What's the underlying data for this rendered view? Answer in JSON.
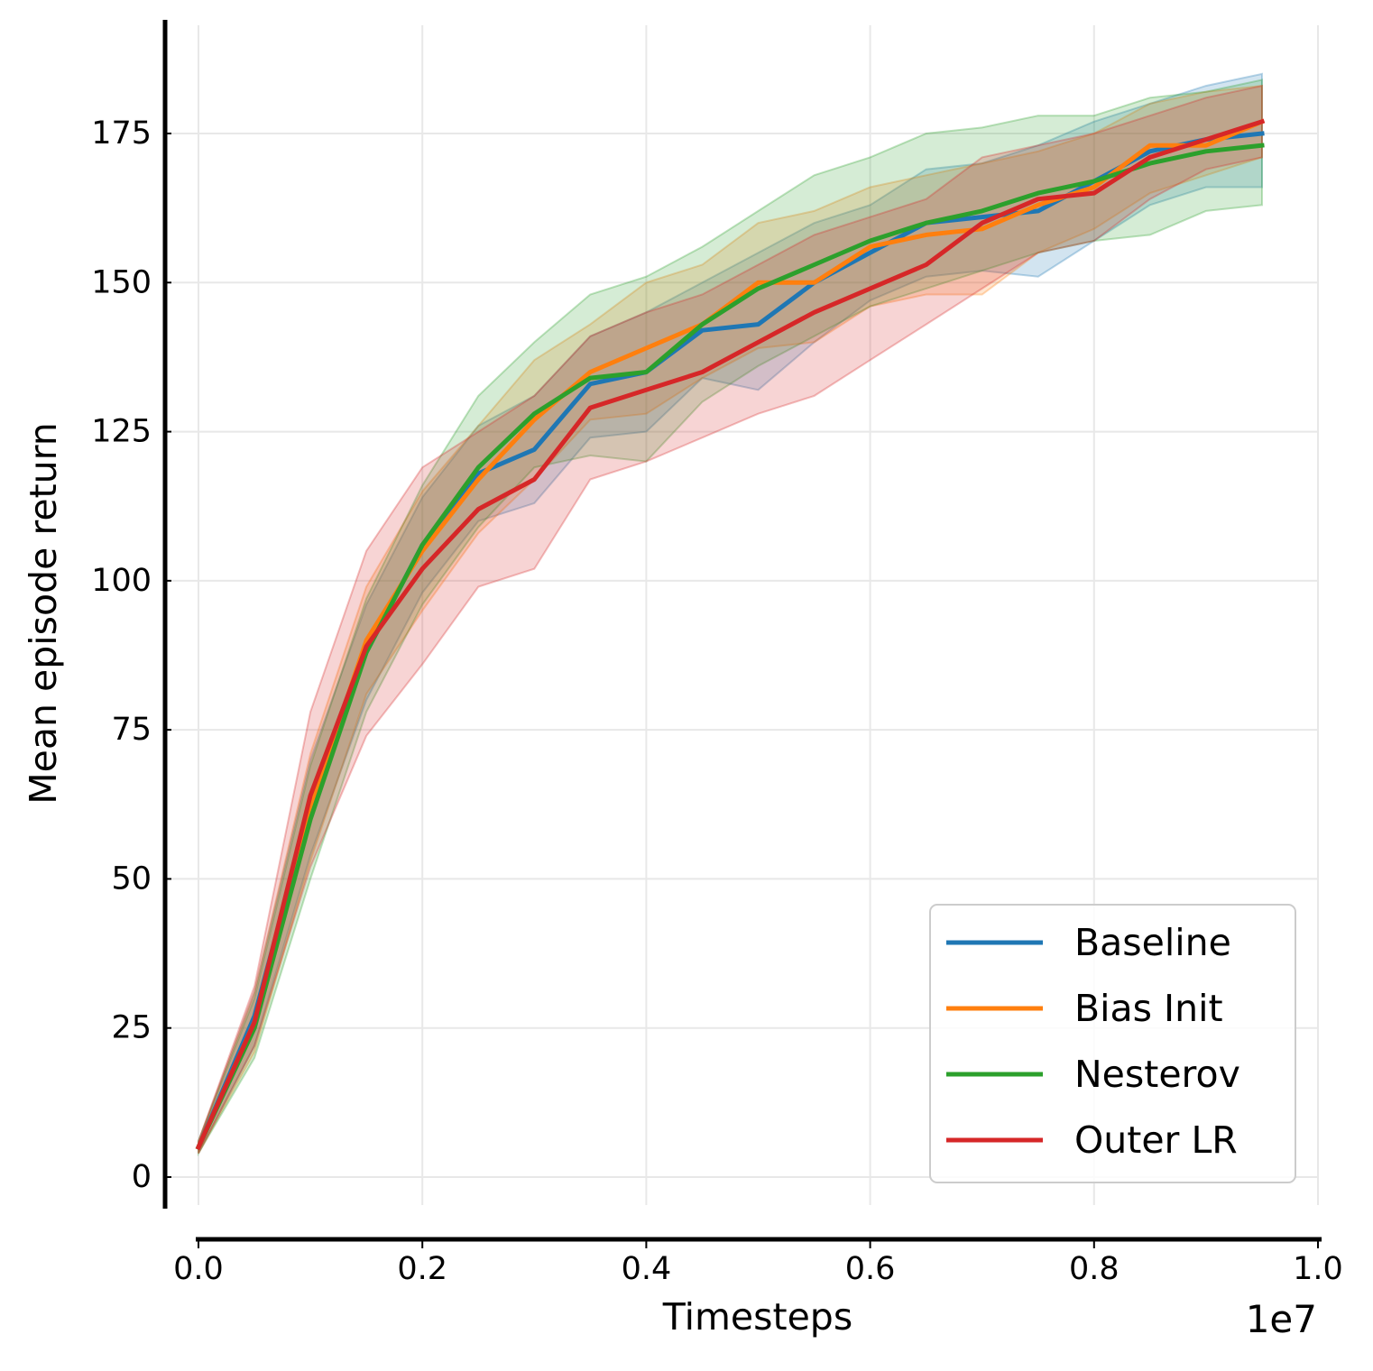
{
  "chart_data": {
    "type": "line",
    "title": "",
    "xlabel": "Timesteps",
    "ylabel": "Mean episode return",
    "x_offset_label": "1e7",
    "xlim": [
      0.0,
      1.0
    ],
    "ylim": [
      -5,
      195
    ],
    "grid": true,
    "legend_position": "lower-right",
    "x_ticks": [
      0.0,
      0.2,
      0.4,
      0.6,
      0.8,
      1.0
    ],
    "x_tick_labels": [
      "0.0",
      "0.2",
      "0.4",
      "0.6",
      "0.8",
      "1.0"
    ],
    "y_ticks": [
      0,
      25,
      50,
      75,
      100,
      125,
      150,
      175
    ],
    "y_tick_labels": [
      "0",
      "25",
      "50",
      "75",
      "100",
      "125",
      "150",
      "175"
    ],
    "x": [
      0.0,
      0.05,
      0.1,
      0.15,
      0.2,
      0.25,
      0.3,
      0.35,
      0.4,
      0.45,
      0.5,
      0.55,
      0.6,
      0.65,
      0.7,
      0.75,
      0.8,
      0.85,
      0.9,
      0.95
    ],
    "series": [
      {
        "name": "Baseline",
        "color": "#1f77b4",
        "values": [
          5,
          27,
          62,
          88,
          106,
          118,
          122,
          133,
          135,
          142,
          143,
          150,
          155,
          160,
          161,
          162,
          167,
          172,
          174,
          175
        ],
        "lower": [
          4,
          22,
          54,
          80,
          98,
          110,
          113,
          124,
          125,
          134,
          132,
          140,
          147,
          151,
          152,
          151,
          157,
          163,
          166,
          166
        ],
        "upper": [
          6,
          31,
          70,
          96,
          114,
          126,
          131,
          141,
          145,
          150,
          155,
          160,
          163,
          169,
          170,
          173,
          177,
          180,
          183,
          185
        ]
      },
      {
        "name": "Bias Init",
        "color": "#ff7f0e",
        "values": [
          5,
          26,
          62,
          90,
          105,
          117,
          127,
          135,
          139,
          143,
          150,
          150,
          156,
          158,
          159,
          163,
          166,
          173,
          173,
          177
        ],
        "lower": [
          4,
          21,
          53,
          81,
          95,
          108,
          117,
          127,
          128,
          134,
          139,
          140,
          146,
          148,
          148,
          155,
          159,
          165,
          168,
          171
        ],
        "upper": [
          6,
          31,
          71,
          99,
          115,
          126,
          137,
          143,
          150,
          153,
          160,
          162,
          166,
          168,
          170,
          172,
          175,
          180,
          182,
          183
        ]
      },
      {
        "name": "Nesterov",
        "color": "#2ca02c",
        "values": [
          5,
          25,
          60,
          88,
          106,
          119,
          128,
          134,
          135,
          143,
          149,
          153,
          157,
          160,
          162,
          165,
          167,
          170,
          172,
          173
        ],
        "lower": [
          4,
          20,
          50,
          78,
          96,
          109,
          119,
          121,
          120,
          130,
          136,
          141,
          146,
          149,
          152,
          155,
          157,
          158,
          162,
          163
        ],
        "upper": [
          6,
          30,
          69,
          97,
          116,
          131,
          140,
          148,
          151,
          156,
          162,
          168,
          171,
          175,
          176,
          178,
          178,
          181,
          182,
          184
        ]
      },
      {
        "name": "Outer LR",
        "color": "#d62728",
        "values": [
          5,
          26,
          64,
          89,
          102,
          112,
          117,
          129,
          132,
          135,
          140,
          145,
          149,
          153,
          160,
          164,
          165,
          171,
          174,
          177
        ],
        "lower": [
          4,
          22,
          52,
          74,
          86,
          99,
          102,
          117,
          120,
          124,
          128,
          131,
          137,
          143,
          149,
          155,
          157,
          164,
          169,
          171
        ],
        "upper": [
          6,
          32,
          78,
          105,
          119,
          125,
          131,
          141,
          145,
          148,
          153,
          158,
          161,
          164,
          171,
          173,
          175,
          178,
          181,
          183
        ]
      }
    ]
  }
}
